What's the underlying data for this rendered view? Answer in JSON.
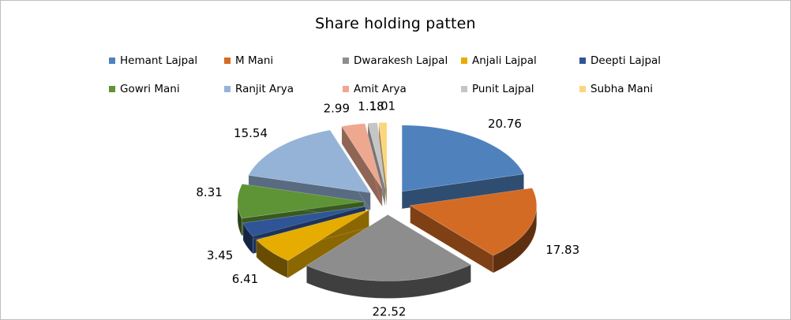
{
  "chart_data": {
    "type": "pie",
    "title": "Share holding patten",
    "legend_position": "top",
    "exploded": true,
    "three_d": true,
    "series": [
      {
        "name": "Hemant Lajpal",
        "value": 20.76,
        "label": "20.76",
        "color": "#4f81bd"
      },
      {
        "name": "M Mani",
        "value": 17.83,
        "label": "17.83",
        "color": "#d36b24"
      },
      {
        "name": "Dwarakesh Lajpal",
        "value": 22.52,
        "label": "22.52",
        "color": "#8d8d8d"
      },
      {
        "name": "Anjali Lajpal",
        "value": 6.41,
        "label": "6.41",
        "color": "#e6ac00"
      },
      {
        "name": "Deepti Lajpal",
        "value": 3.45,
        "label": "3.45",
        "color": "#2f5597"
      },
      {
        "name": "Gowri Mani",
        "value": 8.31,
        "label": "8.31",
        "color": "#5e9435"
      },
      {
        "name": "Ranjit Arya",
        "value": 15.54,
        "label": "15.54",
        "color": "#95b3d7"
      },
      {
        "name": "Amit Arya",
        "value": 2.99,
        "label": "2.99",
        "color": "#eea88f"
      },
      {
        "name": "Punit Lajpal",
        "value": 1.18,
        "label": "1.18",
        "color": "#c5c5c5"
      },
      {
        "name": "Subha Mani",
        "value": 1.01,
        "label": "1.01",
        "color": "#fdd57c"
      }
    ]
  }
}
